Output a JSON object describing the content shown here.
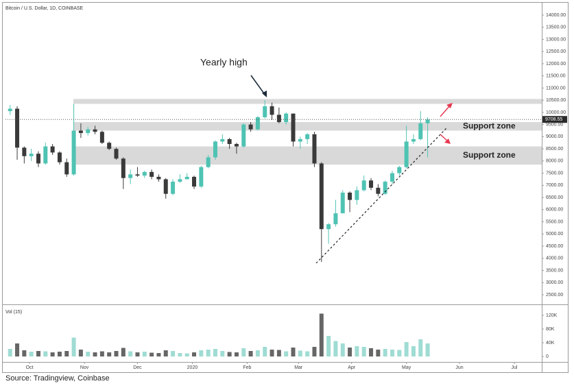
{
  "chart_data": {
    "type": "candlestick",
    "title": "Bitcoin / U.S. Dollar, 1D, COINBASE",
    "x": [
      -11,
      -7,
      -3,
      1,
      5,
      9,
      13,
      17,
      21,
      25,
      29,
      33,
      37,
      41,
      45,
      49,
      53,
      57,
      61,
      65,
      69,
      73,
      77,
      81,
      85,
      89,
      93,
      97,
      101,
      105,
      109,
      113,
      117,
      121,
      125,
      129,
      133,
      137,
      141,
      145,
      149,
      153,
      157,
      161,
      165,
      169,
      173,
      177,
      181,
      185,
      189,
      193,
      197,
      201,
      205,
      209,
      213,
      217,
      221,
      225
    ],
    "open": [
      10050,
      10150,
      8550,
      8200,
      8300,
      7900,
      8600,
      8350,
      7950,
      7450,
      9250,
      9150,
      9300,
      9200,
      8750,
      8500,
      8100,
      7300,
      7450,
      7400,
      7550,
      7350,
      7250,
      6650,
      7150,
      7250,
      7350,
      6950,
      7750,
      8150,
      8800,
      8900,
      8700,
      8600,
      9500,
      9300,
      9800,
      10250,
      9900,
      9600,
      9950,
      8800,
      8900,
      9100,
      7900,
      5200,
      5400,
      5850,
      6700,
      6400,
      6800,
      7200,
      6900,
      6650,
      7150,
      7500,
      7750,
      8800,
      8900,
      9550
    ],
    "high": [
      10300,
      10250,
      8600,
      8500,
      8400,
      8750,
      8700,
      8400,
      8100,
      10350,
      9550,
      9400,
      9450,
      9250,
      8800,
      8550,
      8150,
      7650,
      7750,
      7600,
      7650,
      7450,
      7300,
      7250,
      7450,
      7500,
      7400,
      7800,
      8250,
      8850,
      9100,
      8950,
      8750,
      9550,
      9600,
      9850,
      10500,
      10400,
      10200,
      10000,
      9950,
      9000,
      9150,
      9200,
      7950,
      5450,
      6400,
      6800,
      6750,
      6950,
      7400,
      7300,
      7050,
      7200,
      7600,
      7800,
      9450,
      9100,
      10050,
      9800
    ],
    "low": [
      9900,
      8050,
      7900,
      8000,
      7750,
      7850,
      8250,
      7850,
      7350,
      7400,
      8950,
      9050,
      9100,
      8700,
      8450,
      8050,
      6850,
      7050,
      7350,
      7300,
      7250,
      7150,
      6450,
      6600,
      7100,
      7250,
      6850,
      6900,
      7700,
      8050,
      8700,
      8500,
      8300,
      8550,
      9200,
      9250,
      9750,
      9700,
      9550,
      9500,
      8600,
      8500,
      8700,
      7750,
      3850,
      4600,
      5300,
      5850,
      5900,
      6200,
      6750,
      6800,
      6550,
      6600,
      7050,
      7400,
      7700,
      8700,
      8850,
      8150
    ],
    "close": [
      10150,
      8550,
      8200,
      8300,
      7900,
      8600,
      8350,
      7950,
      7450,
      9250,
      9150,
      9300,
      9200,
      8750,
      8500,
      8100,
      7300,
      7450,
      7400,
      7550,
      7350,
      7250,
      6650,
      7150,
      7250,
      7350,
      6950,
      7750,
      8150,
      8800,
      8900,
      8700,
      8600,
      9500,
      9300,
      9800,
      10250,
      9900,
      9600,
      9950,
      8800,
      8900,
      9100,
      7900,
      5200,
      5400,
      5850,
      6700,
      6400,
      6800,
      7200,
      6900,
      6650,
      7150,
      7500,
      7750,
      8800,
      8900,
      9550,
      9708.55
    ],
    "up_color": "#4fc3b3",
    "down_color": "#3a3a3a",
    "last_price": 9708.55,
    "xlim": [
      -13.6,
      289.5
    ],
    "xticks": [
      {
        "value": 0,
        "label": "Oct"
      },
      {
        "value": 31,
        "label": "Nov"
      },
      {
        "value": 61,
        "label": "Dec"
      },
      {
        "value": 92,
        "label": "2020"
      },
      {
        "value": 123,
        "label": "Feb"
      },
      {
        "value": 152,
        "label": "Mar"
      },
      {
        "value": 182,
        "label": "Apr"
      },
      {
        "value": 213,
        "label": "May"
      },
      {
        "value": 243,
        "label": "Jun"
      },
      {
        "value": 274,
        "label": "Jul"
      }
    ],
    "ylim": [
      2134,
      14535
    ],
    "yticks": [
      {
        "value": 2500,
        "label": "2500.00"
      },
      {
        "value": 3000,
        "label": "3000.00"
      },
      {
        "value": 3500,
        "label": "3500.00"
      },
      {
        "value": 4000,
        "label": "4000.00"
      },
      {
        "value": 4500,
        "label": "4500.00"
      },
      {
        "value": 5000,
        "label": "5000.00"
      },
      {
        "value": 5500,
        "label": "5500.00"
      },
      {
        "value": 6000,
        "label": "6000.00"
      },
      {
        "value": 6500,
        "label": "6500.00"
      },
      {
        "value": 7000,
        "label": "7000.00"
      },
      {
        "value": 7500,
        "label": "7500.00"
      },
      {
        "value": 8000,
        "label": "8000.00"
      },
      {
        "value": 8500,
        "label": "8500.00"
      },
      {
        "value": 9000,
        "label": "9000.00"
      },
      {
        "value": 9500,
        "label": "9500.00"
      },
      {
        "value": 10000,
        "label": "10000.00"
      },
      {
        "value": 10500,
        "label": "10500.00"
      },
      {
        "value": 11000,
        "label": "11000.00"
      },
      {
        "value": 11500,
        "label": "11500.00"
      },
      {
        "value": 12000,
        "label": "12000.00"
      },
      {
        "value": 12500,
        "label": "12500.00"
      },
      {
        "value": 13000,
        "label": "13000.00"
      },
      {
        "value": 13500,
        "label": "13500.00"
      },
      {
        "value": 14000,
        "label": "14000.00"
      }
    ],
    "zones": [
      {
        "low": 10350,
        "high": 10550
      },
      {
        "low": 9250,
        "high": 9600,
        "label": "Support zone"
      },
      {
        "low": 7850,
        "high": 8600,
        "label": "Support zone"
      }
    ],
    "zone_start": 25,
    "annotation": "Yearly high",
    "trendline": {
      "x": [
        162,
        236
      ],
      "y": [
        3800,
        9380
      ]
    },
    "volume": {
      "title": "Vol (15)",
      "values": [
        22000,
        38000,
        18000,
        14000,
        16000,
        15000,
        12000,
        14000,
        16000,
        55000,
        20000,
        14000,
        12000,
        15000,
        12000,
        16000,
        25000,
        15000,
        12000,
        14000,
        11000,
        10000,
        18000,
        16000,
        10000,
        9000,
        12000,
        18000,
        20000,
        22000,
        16000,
        13000,
        12000,
        24000,
        16000,
        18000,
        28000,
        20000,
        19000,
        15000,
        26000,
        17000,
        15000,
        28000,
        125000,
        60000,
        45000,
        38000,
        26000,
        30000,
        28000,
        24000,
        20000,
        22000,
        20000,
        19000,
        42000,
        30000,
        50000,
        38000
      ],
      "ylim": [
        -14000,
        144000
      ],
      "yticks": [
        {
          "value": 0,
          "label": "0"
        },
        {
          "value": 40000,
          "label": "40K"
        },
        {
          "value": 80000,
          "label": "80K"
        },
        {
          "value": 120000,
          "label": "120K"
        }
      ]
    }
  },
  "source": "Source: Tradingview, Coinbase"
}
